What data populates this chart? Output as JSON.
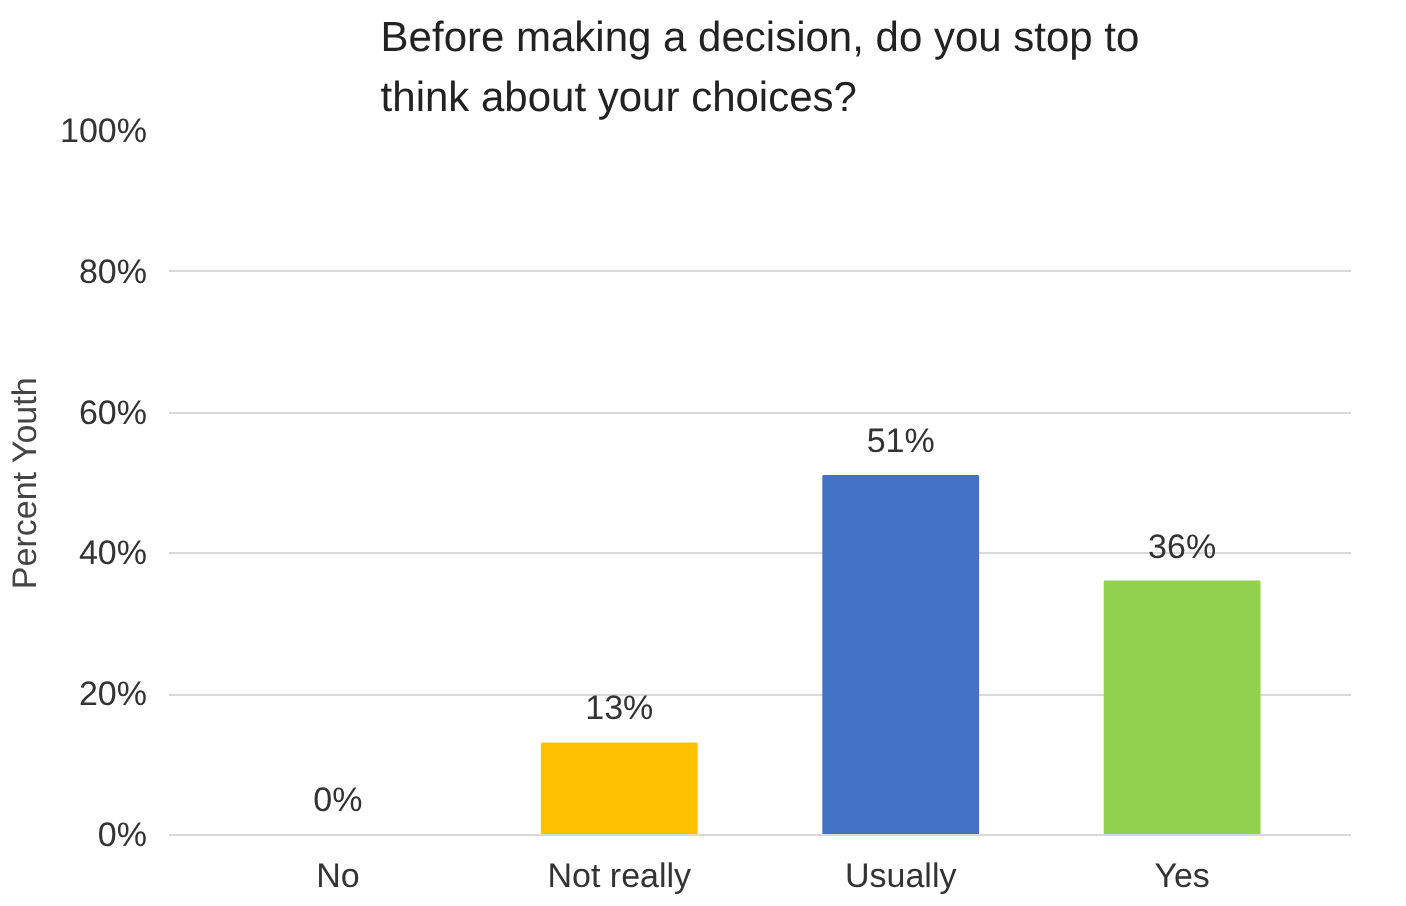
{
  "chart_data": {
    "type": "bar",
    "title": "Before making a decision, do you stop to\nthink about your choices?",
    "ylabel": "Percent Youth",
    "categories": [
      "No",
      "Not really",
      "Usually",
      "Yes"
    ],
    "values": [
      0,
      13,
      51,
      36
    ],
    "value_labels": [
      "0%",
      "13%",
      "51%",
      "36%"
    ],
    "colors": [
      "#a5a5a5",
      "#ffc000",
      "#4472c4",
      "#92d050"
    ],
    "ylim": [
      0,
      100
    ],
    "yticks": [
      {
        "value": 0,
        "label": "0%"
      },
      {
        "value": 20,
        "label": "20%"
      },
      {
        "value": 40,
        "label": "40%"
      },
      {
        "value": 60,
        "label": "60%"
      },
      {
        "value": 80,
        "label": "80%"
      },
      {
        "value": 100,
        "label": "100%"
      }
    ],
    "grid": "y"
  }
}
